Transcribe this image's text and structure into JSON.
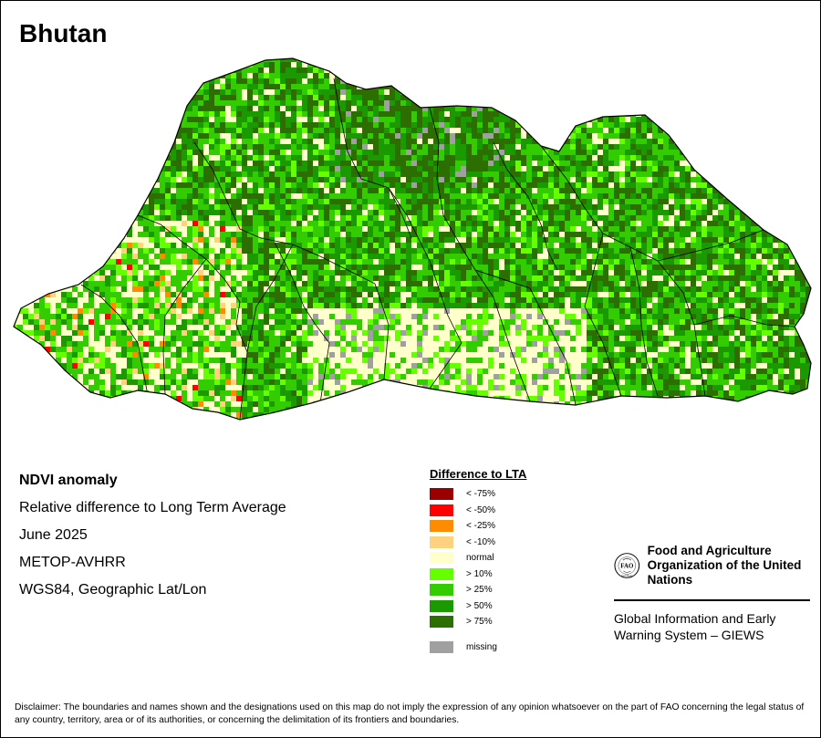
{
  "map": {
    "title": "Bhutan"
  },
  "info": {
    "indicator": "NDVI anomaly",
    "description": "Relative difference to Long Term Average",
    "period": "June 2025",
    "sensor": "METOP-AVHRR",
    "projection": "WGS84, Geographic Lat/Lon"
  },
  "legend": {
    "title": "Difference to LTA",
    "items": [
      {
        "label": "< -75%",
        "color": "#990000"
      },
      {
        "label": "< -50%",
        "color": "#ff0000"
      },
      {
        "label": "< -25%",
        "color": "#ff8c00"
      },
      {
        "label": "< -10%",
        "color": "#ffd27f"
      },
      {
        "label": "normal",
        "color": "#ffffcc"
      },
      {
        "label": "> 10%",
        "color": "#66ff00"
      },
      {
        "label": "> 25%",
        "color": "#33cc00"
      },
      {
        "label": "> 50%",
        "color": "#1a9900"
      },
      {
        "label": "> 75%",
        "color": "#2d6e00"
      }
    ],
    "missing": {
      "label": "missing",
      "color": "#a0a0a0"
    }
  },
  "organization": {
    "emblem_text": "FAO",
    "emblem_motto": "FIAT PANIS",
    "name": "Food and Agriculture Organization of the United Nations",
    "system": "Global Information and Early Warning System – GIEWS"
  },
  "disclaimer": "Disclaimer: The boundaries and names shown and the designations used on this map do not imply the expression of any opinion whatsoever on the part of FAO concerning the legal status of any country, territory, area or of its authorities, or concerning the delimitation of its frontiers and boundaries."
}
